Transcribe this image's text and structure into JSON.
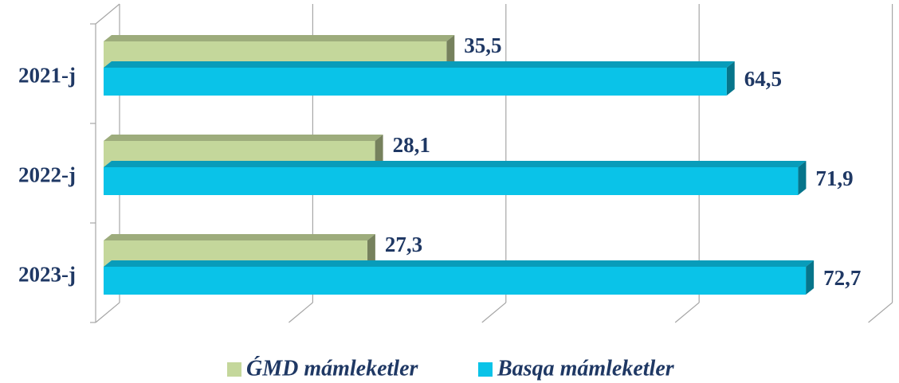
{
  "chart_data": {
    "type": "bar",
    "orientation": "horizontal",
    "categories": [
      "2021-j",
      "2022-j",
      "2023-j"
    ],
    "series": [
      {
        "name": "ǴMD mámleketler",
        "color": "#c4d79b",
        "values": [
          35.5,
          28.1,
          27.3
        ],
        "value_labels": [
          "35,5",
          "28,1",
          "27,3"
        ]
      },
      {
        "name": "Basqa mámleketler",
        "color": "#0ac3e8",
        "values": [
          64.5,
          71.9,
          72.7
        ],
        "value_labels": [
          "64,5",
          "71,9",
          "72,7"
        ]
      }
    ],
    "xlim": [
      0,
      80
    ],
    "xticks": [
      0,
      20,
      40,
      60,
      80
    ],
    "grid": true,
    "legend": "bottom"
  }
}
